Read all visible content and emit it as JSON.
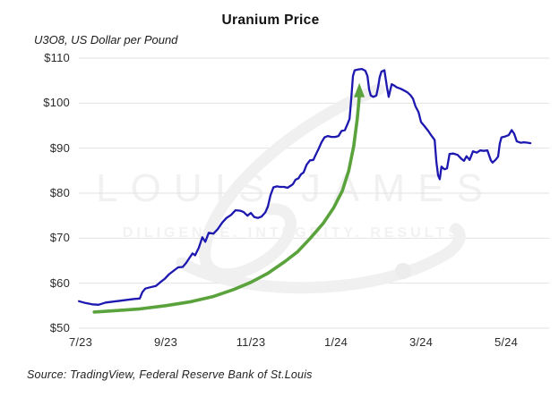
{
  "title": "Uranium Price",
  "subtitle": "U3O8, US Dollar per Pound",
  "source": "Source: TradingView, Federal Reserve Bank of St.Louis",
  "watermark": {
    "line1": "LOUIS JAMES",
    "line2": "DILIGENCE. INTEGRITY. RESULTS."
  },
  "colors": {
    "price_line": "#1c18b0",
    "trend_arrow": "#5aa33c",
    "grid": "#e2e2e2",
    "watermark": "#f0f0f0",
    "text": "#1c1c1c"
  },
  "chart_data": {
    "type": "line",
    "title": "Uranium Price",
    "subtitle": "U3O8, US Dollar per Pound",
    "xlabel": "",
    "ylabel": "U3O8, US Dollar per Pound",
    "x_unit": "months since July 2023",
    "ylim": [
      50,
      110
    ],
    "grid": "horizontal only",
    "legend": "none",
    "y_ticks": [
      {
        "v": 110,
        "label": "$110"
      },
      {
        "v": 100,
        "label": "$100"
      },
      {
        "v": 90,
        "label": "$90"
      },
      {
        "v": 80,
        "label": "$80"
      },
      {
        "v": 70,
        "label": "$70"
      },
      {
        "v": 60,
        "label": "$60"
      },
      {
        "v": 50,
        "label": "$50"
      }
    ],
    "x_ticks": [
      {
        "t": 0,
        "label": "7/23"
      },
      {
        "t": 2,
        "label": "9/23"
      },
      {
        "t": 4,
        "label": "11/23"
      },
      {
        "t": 6,
        "label": "1/24"
      },
      {
        "t": 8,
        "label": "3/24"
      },
      {
        "t": 10,
        "label": "5/24"
      }
    ],
    "series": [
      {
        "name": "U3O8 uranium spot price, USD per pound",
        "color": "#1c18b0",
        "points": [
          [
            -0.04,
            56.0
          ],
          [
            0.11,
            55.6
          ],
          [
            0.27,
            55.3
          ],
          [
            0.42,
            55.2
          ],
          [
            0.59,
            55.7
          ],
          [
            0.76,
            55.9
          ],
          [
            0.93,
            56.1
          ],
          [
            1.09,
            56.3
          ],
          [
            1.26,
            56.5
          ],
          [
            1.39,
            56.6
          ],
          [
            1.45,
            58.0
          ],
          [
            1.52,
            58.8
          ],
          [
            1.64,
            59.1
          ],
          [
            1.77,
            59.4
          ],
          [
            1.87,
            60.2
          ],
          [
            1.98,
            61.0
          ],
          [
            2.08,
            62.0
          ],
          [
            2.19,
            62.8
          ],
          [
            2.29,
            63.5
          ],
          [
            2.4,
            63.6
          ],
          [
            2.48,
            64.5
          ],
          [
            2.57,
            65.8
          ],
          [
            2.63,
            66.6
          ],
          [
            2.69,
            66.2
          ],
          [
            2.78,
            67.9
          ],
          [
            2.86,
            70.2
          ],
          [
            2.93,
            69.2
          ],
          [
            3.01,
            71.2
          ],
          [
            3.12,
            71.0
          ],
          [
            3.22,
            72.0
          ],
          [
            3.33,
            73.5
          ],
          [
            3.43,
            74.5
          ],
          [
            3.54,
            75.2
          ],
          [
            3.64,
            76.2
          ],
          [
            3.75,
            76.1
          ],
          [
            3.83,
            75.8
          ],
          [
            3.92,
            75.0
          ],
          [
            4.0,
            75.6
          ],
          [
            4.08,
            74.7
          ],
          [
            4.17,
            74.5
          ],
          [
            4.25,
            74.8
          ],
          [
            4.34,
            75.7
          ],
          [
            4.4,
            77.0
          ],
          [
            4.46,
            79.5
          ],
          [
            4.53,
            81.3
          ],
          [
            4.61,
            81.5
          ],
          [
            4.69,
            81.4
          ],
          [
            4.78,
            81.4
          ],
          [
            4.86,
            81.2
          ],
          [
            4.93,
            81.6
          ],
          [
            4.99,
            82.0
          ],
          [
            5.05,
            83.0
          ],
          [
            5.12,
            83.3
          ],
          [
            5.18,
            84.2
          ],
          [
            5.24,
            84.6
          ],
          [
            5.31,
            86.3
          ],
          [
            5.39,
            87.3
          ],
          [
            5.47,
            87.4
          ],
          [
            5.54,
            88.8
          ],
          [
            5.6,
            90.0
          ],
          [
            5.66,
            91.3
          ],
          [
            5.73,
            92.4
          ],
          [
            5.81,
            92.7
          ],
          [
            5.89,
            92.5
          ],
          [
            5.98,
            92.5
          ],
          [
            6.06,
            92.7
          ],
          [
            6.13,
            93.8
          ],
          [
            6.21,
            94.0
          ],
          [
            6.27,
            95.3
          ],
          [
            6.32,
            96.5
          ],
          [
            6.36,
            101.0
          ],
          [
            6.4,
            106.0
          ],
          [
            6.44,
            107.3
          ],
          [
            6.53,
            107.5
          ],
          [
            6.61,
            107.6
          ],
          [
            6.69,
            107.2
          ],
          [
            6.74,
            106.0
          ],
          [
            6.78,
            103.0
          ],
          [
            6.82,
            101.7
          ],
          [
            6.88,
            101.4
          ],
          [
            6.95,
            101.7
          ],
          [
            6.99,
            103.5
          ],
          [
            7.03,
            105.8
          ],
          [
            7.07,
            107.0
          ],
          [
            7.14,
            107.3
          ],
          [
            7.2,
            103.5
          ],
          [
            7.24,
            101.4
          ],
          [
            7.31,
            104.2
          ],
          [
            7.37,
            103.9
          ],
          [
            7.43,
            103.5
          ],
          [
            7.52,
            103.2
          ],
          [
            7.6,
            102.8
          ],
          [
            7.68,
            102.4
          ],
          [
            7.75,
            101.8
          ],
          [
            7.81,
            101.0
          ],
          [
            7.87,
            99.3
          ],
          [
            7.94,
            98.0
          ],
          [
            8.0,
            95.8
          ],
          [
            8.08,
            94.9
          ],
          [
            8.17,
            93.8
          ],
          [
            8.25,
            92.7
          ],
          [
            8.32,
            91.8
          ],
          [
            8.36,
            87.0
          ],
          [
            8.4,
            84.0
          ],
          [
            8.44,
            83.1
          ],
          [
            8.48,
            85.9
          ],
          [
            8.55,
            85.3
          ],
          [
            8.61,
            85.5
          ],
          [
            8.67,
            88.7
          ],
          [
            8.76,
            88.8
          ],
          [
            8.86,
            88.5
          ],
          [
            8.95,
            87.6
          ],
          [
            9.01,
            87.2
          ],
          [
            9.07,
            88.2
          ],
          [
            9.14,
            87.4
          ],
          [
            9.22,
            89.3
          ],
          [
            9.31,
            89.0
          ],
          [
            9.39,
            89.5
          ],
          [
            9.47,
            89.4
          ],
          [
            9.56,
            89.5
          ],
          [
            9.64,
            87.3
          ],
          [
            9.68,
            86.8
          ],
          [
            9.75,
            87.4
          ],
          [
            9.81,
            88.1
          ],
          [
            9.85,
            91.0
          ],
          [
            9.89,
            92.4
          ],
          [
            9.98,
            92.6
          ],
          [
            10.06,
            92.9
          ],
          [
            10.13,
            94.0
          ],
          [
            10.19,
            93.2
          ],
          [
            10.25,
            91.5
          ],
          [
            10.34,
            91.2
          ],
          [
            10.42,
            91.3
          ],
          [
            10.51,
            91.2
          ],
          [
            10.57,
            91.1
          ]
        ]
      }
    ],
    "annotation": {
      "name": "exponential uptrend arrow",
      "shape": "curved arrow pointing up at the early-2024 price peak",
      "color": "#5aa33c",
      "points": [
        [
          0.32,
          53.6
        ],
        [
          0.8,
          53.9
        ],
        [
          1.4,
          54.3
        ],
        [
          2.0,
          55.0
        ],
        [
          2.6,
          55.9
        ],
        [
          3.1,
          57.0
        ],
        [
          3.6,
          58.6
        ],
        [
          4.0,
          60.2
        ],
        [
          4.4,
          62.2
        ],
        [
          4.8,
          64.8
        ],
        [
          5.1,
          67.0
        ],
        [
          5.4,
          70.0
        ],
        [
          5.7,
          73.3
        ],
        [
          5.95,
          76.8
        ],
        [
          6.15,
          80.5
        ],
        [
          6.3,
          85.0
        ],
        [
          6.42,
          90.5
        ],
        [
          6.5,
          96.5
        ],
        [
          6.55,
          101.5
        ]
      ]
    }
  }
}
